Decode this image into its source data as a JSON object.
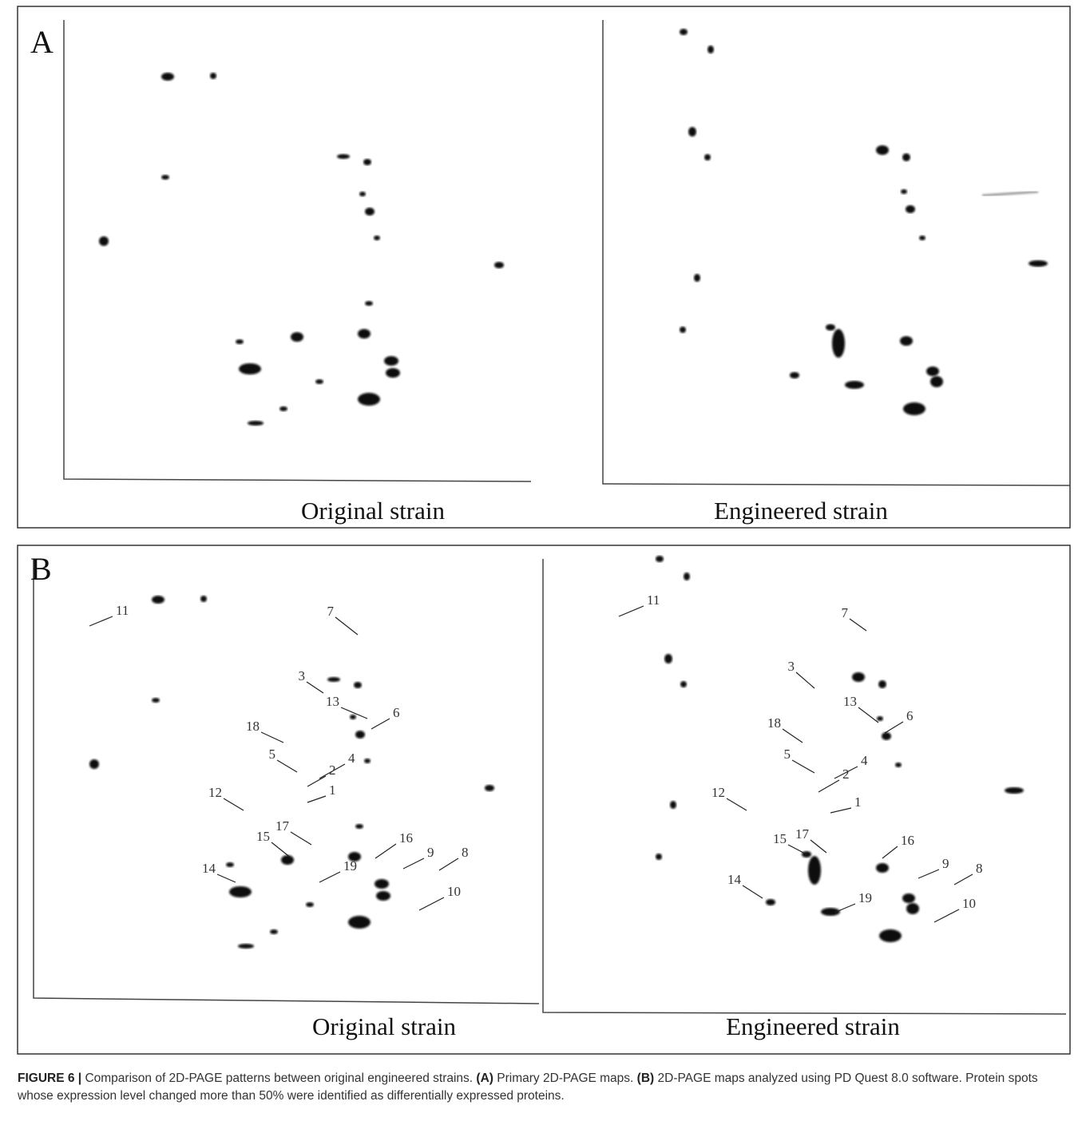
{
  "figure": {
    "panels": [
      {
        "label": "A",
        "gels": [
          {
            "caption": "Original strain"
          },
          {
            "caption": "Engineered strain"
          }
        ]
      },
      {
        "label": "B",
        "gels": [
          {
            "caption": "Original strain",
            "spots": [
              "11",
              "7",
              "3",
              "13",
              "6",
              "18",
              "5",
              "4",
              "2",
              "1",
              "12",
              "17",
              "15",
              "16",
              "9",
              "8",
              "14",
              "19",
              "10"
            ]
          },
          {
            "caption": "Engineered strain",
            "spots": [
              "11",
              "7",
              "3",
              "13",
              "6",
              "18",
              "5",
              "4",
              "2",
              "1",
              "12",
              "17",
              "15",
              "16",
              "9",
              "8",
              "14",
              "19",
              "10"
            ]
          }
        ]
      }
    ],
    "caption": {
      "label": "FIGURE 6 |",
      "text1": "Comparison of 2D-PAGE patterns between original engineered strains.",
      "a": "(A)",
      "text2": "Primary 2D-PAGE maps.",
      "b": "(B)",
      "text3": "2D-PAGE maps analyzed using PD Quest 8.0 software. Protein spots whose expression level changed more than 50% were identified as differentially expressed proteins."
    }
  }
}
